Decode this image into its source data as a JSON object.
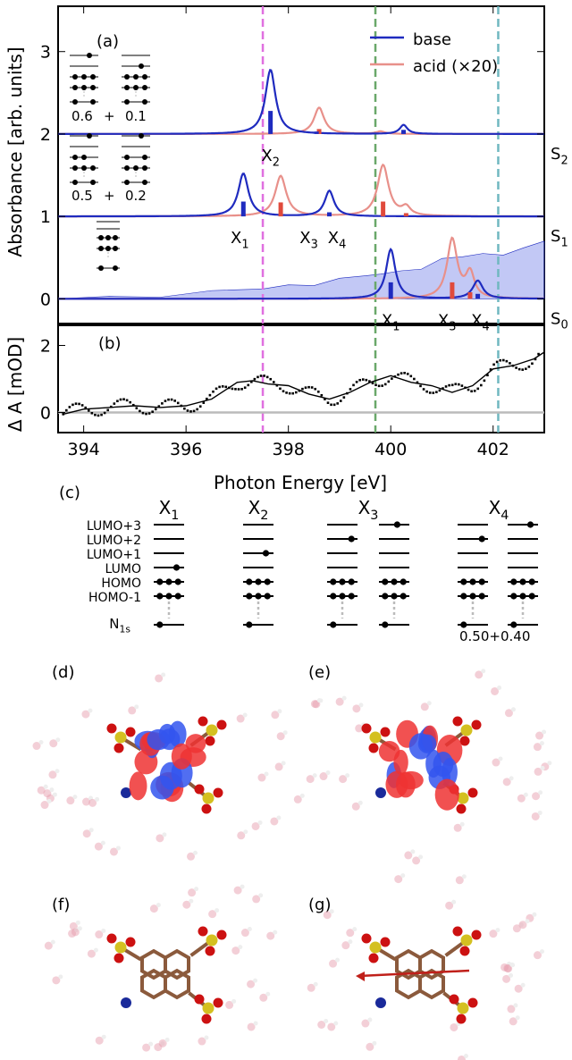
{
  "colors": {
    "base": "#1f2bbf",
    "acid": "#e8908a",
    "acid_bar": "#e04a3c",
    "fill": "#9aa3ef",
    "magenta": "#e070e0",
    "green": "#6aa86a",
    "teal": "#70b8c0",
    "gray": "#bbbbbb",
    "neg": "#3355ee",
    "pos": "#ee3333",
    "atom_c": "#8b5a3c",
    "atom_s": "#d4c020",
    "atom_o": "#cc1111",
    "atom_n": "#1a2a9a",
    "water": "#e8a0b0"
  },
  "panel_labels": {
    "a": "(a)",
    "b": "(b)",
    "c": "(c)",
    "d": "(d)",
    "e": "(e)",
    "f": "(f)",
    "g": "(g)"
  },
  "legend": {
    "base": "base",
    "acid": "acid (×20)"
  },
  "chart_data": [
    {
      "type": "line",
      "title": "",
      "xlabel": "Photon Energy [eV]",
      "ylabel": "Absorbance [arb. units]",
      "xlim": [
        393.5,
        403
      ],
      "ylim": [
        -0.3,
        3.55
      ],
      "xticks": [
        394,
        396,
        398,
        400,
        402
      ],
      "yticks": [
        0,
        1,
        2,
        3
      ],
      "vlines": [
        {
          "x": 397.5,
          "color": "magenta"
        },
        {
          "x": 399.7,
          "color": "green"
        },
        {
          "x": 402.1,
          "color": "teal"
        }
      ],
      "states": [
        {
          "label": "S",
          "sub": "2",
          "offset": 2,
          "base": {
            "peaks": [
              {
                "x": 397.65,
                "amp": 0.78,
                "w": 0.12
              },
              {
                "x": 400.25,
                "amp": 0.11,
                "w": 0.09
              }
            ]
          },
          "acid": {
            "peaks": [
              {
                "x": 398.6,
                "amp": 0.32,
                "w": 0.12
              },
              {
                "x": 399.8,
                "amp": 0.03,
                "w": 0.1
              }
            ]
          },
          "sticks_base": [
            {
              "x": 397.65,
              "h": 0.28
            },
            {
              "x": 400.25,
              "h": 0.05
            }
          ],
          "sticks_acid": [
            {
              "x": 398.6,
              "h": 0.06
            }
          ],
          "sticks_base_small": [
            {
              "x": 398.55,
              "h": 0.03
            }
          ],
          "peak_labels": [
            {
              "text": "X",
              "sub": "2",
              "x": 397.65
            }
          ]
        },
        {
          "label": "S",
          "sub": "1",
          "offset": 1,
          "base": {
            "peaks": [
              {
                "x": 397.12,
                "amp": 0.52,
                "w": 0.12
              },
              {
                "x": 398.8,
                "amp": 0.31,
                "w": 0.11
              }
            ]
          },
          "acid": {
            "peaks": [
              {
                "x": 397.85,
                "amp": 0.49,
                "w": 0.13
              },
              {
                "x": 399.85,
                "amp": 0.62,
                "w": 0.13
              },
              {
                "x": 400.3,
                "amp": 0.1,
                "w": 0.1
              }
            ]
          },
          "sticks_base": [
            {
              "x": 397.12,
              "h": 0.18
            },
            {
              "x": 398.8,
              "h": 0.05
            }
          ],
          "sticks_acid": [
            {
              "x": 397.85,
              "h": 0.17
            },
            {
              "x": 399.85,
              "h": 0.18
            },
            {
              "x": 400.3,
              "h": 0.04
            }
          ],
          "peak_labels": [
            {
              "text": "X",
              "sub": "1",
              "x": 397.05
            },
            {
              "text": "X",
              "sub": "3",
              "x": 398.4
            },
            {
              "text": "X",
              "sub": "4",
              "x": 398.95
            }
          ]
        },
        {
          "label": "S",
          "sub": "0",
          "offset": 0,
          "base": {
            "peaks": [
              {
                "x": 400.0,
                "amp": 0.6,
                "w": 0.11
              },
              {
                "x": 401.7,
                "amp": 0.22,
                "w": 0.12
              }
            ]
          },
          "acid": {
            "peaks": [
              {
                "x": 401.2,
                "amp": 0.72,
                "w": 0.12
              },
              {
                "x": 401.55,
                "amp": 0.3,
                "w": 0.1
              }
            ]
          },
          "sticks_base": [
            {
              "x": 400.0,
              "h": 0.2
            },
            {
              "x": 401.7,
              "h": 0.06
            }
          ],
          "sticks_acid": [
            {
              "x": 401.2,
              "h": 0.2
            },
            {
              "x": 401.55,
              "h": 0.08
            }
          ],
          "experimental_fill": {
            "x": [
              393.5,
              394.5,
              395.5,
              396.5,
              397.5,
              398,
              398.5,
              399,
              399.5,
              399.8,
              400.2,
              400.6,
              401,
              401.4,
              401.8,
              402.2,
              402.6,
              403
            ],
            "y": [
              0,
              0.01,
              0.03,
              0.07,
              0.12,
              0.15,
              0.18,
              0.22,
              0.27,
              0.3,
              0.32,
              0.38,
              0.45,
              0.5,
              0.52,
              0.55,
              0.6,
              0.65
            ]
          },
          "peak_labels": [
            {
              "text": "X",
              "sub": "1",
              "x": 400.0
            },
            {
              "text": "X",
              "sub": "3",
              "x": 401.1
            },
            {
              "text": "X",
              "sub": "4",
              "x": 401.75
            }
          ]
        }
      ],
      "insets": [
        {
          "weights": [
            "0.6",
            "+",
            "0.1"
          ]
        },
        {
          "weights": [
            "0.5",
            "+",
            "0.2"
          ]
        }
      ]
    },
    {
      "type": "scatter",
      "ylabel": "Δ A [mOD]",
      "xlim": [
        393.5,
        403
      ],
      "ylim": [
        -0.6,
        2.6
      ],
      "yticks": [
        0,
        2
      ],
      "xticks": [
        394,
        396,
        398,
        400,
        402
      ],
      "tick_labels": [
        "394",
        "396",
        "398",
        "400",
        "402"
      ],
      "curve": {
        "x": [
          393.6,
          394,
          394.5,
          395,
          395.5,
          396,
          396.5,
          397,
          397.3,
          397.6,
          398,
          398.4,
          398.8,
          399.2,
          399.6,
          400,
          400.4,
          400.8,
          401.2,
          401.6,
          402,
          402.4,
          402.8,
          403
        ],
        "y": [
          -0.05,
          0.1,
          0.15,
          0.2,
          0.15,
          0.2,
          0.4,
          0.9,
          0.95,
          0.85,
          0.8,
          0.55,
          0.4,
          0.6,
          0.9,
          1.1,
          0.9,
          0.8,
          0.6,
          0.8,
          1.3,
          1.4,
          1.6,
          1.8
        ]
      },
      "baseline": 0
    }
  ],
  "orbital_diagram": {
    "levels": [
      "LUMO+3",
      "LUMO+2",
      "LUMO+1",
      "LUMO",
      "HOMO",
      "HOMO-1"
    ],
    "core_label": "N",
    "core_sub": "1s",
    "columns": [
      {
        "label": "X",
        "sub": "1"
      },
      {
        "label": "X",
        "sub": "2"
      },
      {
        "label": "X",
        "sub": "3"
      },
      {
        "label": "X",
        "sub": "4"
      }
    ],
    "weights": "0.50+0.40"
  }
}
